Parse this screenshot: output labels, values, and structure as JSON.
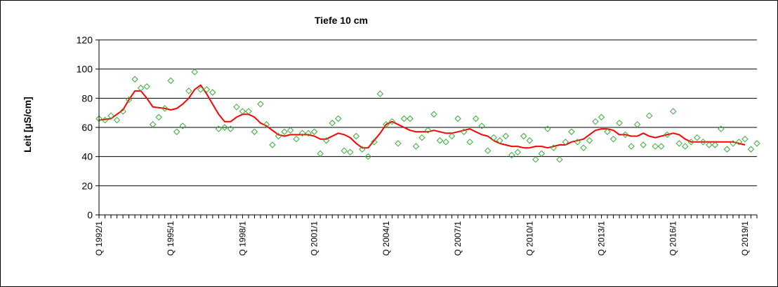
{
  "chart_data": {
    "type": "scatter",
    "title": "Tiefe  10 cm",
    "ylabel": "Leit  [µS/cm]",
    "xlabel": "",
    "ylim": [
      0,
      120
    ],
    "yticks": [
      0,
      20,
      40,
      60,
      80,
      100,
      120
    ],
    "x_tick_labels": [
      "Q 1992/1",
      "Q 1995/1",
      "Q 1998/1",
      "Q 2001/1",
      "Q 2004/1",
      "Q 2007/1",
      "Q 2010/1",
      "Q 2013/1",
      "Q 2016/1",
      "Q 2019/1"
    ],
    "x_start": "Q 1992/1",
    "n_quarters": 111,
    "grid": "horizontal",
    "colors": {
      "points": "#33aa33",
      "line": "#ff0000",
      "grid": "#000000"
    },
    "series": [
      {
        "kind": "markers",
        "points": [
          [
            "Q 1992/1",
            66
          ],
          [
            "Q 1992/2",
            65
          ],
          [
            "Q 1992/3",
            68
          ],
          [
            "Q 1992/4",
            65
          ],
          [
            "Q 1993/1",
            71
          ],
          [
            "Q 1993/2",
            79
          ],
          [
            "Q 1993/3",
            93
          ],
          [
            "Q 1993/4",
            87
          ],
          [
            "Q 1994/1",
            88
          ],
          [
            "Q 1994/2",
            62
          ],
          [
            "Q 1994/3",
            67
          ],
          [
            "Q 1994/4",
            73
          ],
          [
            "Q 1995/1",
            92
          ],
          [
            "Q 1995/2",
            57
          ],
          [
            "Q 1995/3",
            61
          ],
          [
            "Q 1995/4",
            85
          ],
          [
            "Q 1996/1",
            98
          ],
          [
            "Q 1996/2",
            86
          ],
          [
            "Q 1996/3",
            86
          ],
          [
            "Q 1996/4",
            84
          ],
          [
            "Q 1997/1",
            59
          ],
          [
            "Q 1997/2",
            60
          ],
          [
            "Q 1997/3",
            59
          ],
          [
            "Q 1997/4",
            74
          ],
          [
            "Q 1998/1",
            71
          ],
          [
            "Q 1998/2",
            71
          ],
          [
            "Q 1998/3",
            57
          ],
          [
            "Q 1998/4",
            76
          ],
          [
            "Q 1999/1",
            62
          ],
          [
            "Q 1999/2",
            48
          ],
          [
            "Q 1999/3",
            54
          ],
          [
            "Q 1999/4",
            57
          ],
          [
            "Q 2000/1",
            58
          ],
          [
            "Q 2000/2",
            52
          ],
          [
            "Q 2000/3",
            56
          ],
          [
            "Q 2000/4",
            56
          ],
          [
            "Q 2001/1",
            57
          ],
          [
            "Q 2001/2",
            42
          ],
          [
            "Q 2001/3",
            51
          ],
          [
            "Q 2001/4",
            63
          ],
          [
            "Q 2002/1",
            66
          ],
          [
            "Q 2002/2",
            44
          ],
          [
            "Q 2002/3",
            43
          ],
          [
            "Q 2002/4",
            54
          ],
          [
            "Q 2003/1",
            45
          ],
          [
            "Q 2003/2",
            40
          ],
          [
            "Q 2003/3",
            50
          ],
          [
            "Q 2003/4",
            83
          ],
          [
            "Q 2004/1",
            62
          ],
          [
            "Q 2004/2",
            64
          ],
          [
            "Q 2004/3",
            49
          ],
          [
            "Q 2004/4",
            66
          ],
          [
            "Q 2005/1",
            66
          ],
          [
            "Q 2005/2",
            47
          ],
          [
            "Q 2005/3",
            53
          ],
          [
            "Q 2005/4",
            58
          ],
          [
            "Q 2006/1",
            69
          ],
          [
            "Q 2006/2",
            51
          ],
          [
            "Q 2006/3",
            50
          ],
          [
            "Q 2006/4",
            54
          ],
          [
            "Q 2007/1",
            66
          ],
          [
            "Q 2007/2",
            57
          ],
          [
            "Q 2007/3",
            50
          ],
          [
            "Q 2007/4",
            66
          ],
          [
            "Q 2008/1",
            61
          ],
          [
            "Q 2008/2",
            44
          ],
          [
            "Q 2008/3",
            53
          ],
          [
            "Q 2008/4",
            51
          ],
          [
            "Q 2009/1",
            54
          ],
          [
            "Q 2009/2",
            41
          ],
          [
            "Q 2009/3",
            43
          ],
          [
            "Q 2009/4",
            54
          ],
          [
            "Q 2010/1",
            51
          ],
          [
            "Q 2010/2",
            38
          ],
          [
            "Q 2010/3",
            42
          ],
          [
            "Q 2010/4",
            59
          ],
          [
            "Q 2011/1",
            46
          ],
          [
            "Q 2011/2",
            38
          ],
          [
            "Q 2011/3",
            50
          ],
          [
            "Q 2011/4",
            57
          ],
          [
            "Q 2012/1",
            50
          ],
          [
            "Q 2012/2",
            46
          ],
          [
            "Q 2012/3",
            51
          ],
          [
            "Q 2012/4",
            64
          ],
          [
            "Q 2013/1",
            67
          ],
          [
            "Q 2013/2",
            57
          ],
          [
            "Q 2013/3",
            52
          ],
          [
            "Q 2013/4",
            63
          ],
          [
            "Q 2014/1",
            55
          ],
          [
            "Q 2014/2",
            47
          ],
          [
            "Q 2014/3",
            62
          ],
          [
            "Q 2014/4",
            48
          ],
          [
            "Q 2015/1",
            68
          ],
          [
            "Q 2015/2",
            47
          ],
          [
            "Q 2015/3",
            47
          ],
          [
            "Q 2015/4",
            55
          ],
          [
            "Q 2016/1",
            71
          ],
          [
            "Q 2016/2",
            49
          ],
          [
            "Q 2016/3",
            47
          ],
          [
            "Q 2016/4",
            50
          ],
          [
            "Q 2017/1",
            53
          ],
          [
            "Q 2017/2",
            50
          ],
          [
            "Q 2017/3",
            48
          ],
          [
            "Q 2017/4",
            48
          ],
          [
            "Q 2018/1",
            59
          ],
          [
            "Q 2018/2",
            45
          ],
          [
            "Q 2018/3",
            49
          ],
          [
            "Q 2018/4",
            50
          ],
          [
            "Q 2019/1",
            52
          ],
          [
            "Q 2019/2",
            45
          ],
          [
            "Q 2019/3",
            49
          ]
        ]
      },
      {
        "kind": "line",
        "points": [
          [
            "Q 1992/1",
            65
          ],
          [
            "Q 1992/3",
            66
          ],
          [
            "Q 1993/1",
            72
          ],
          [
            "Q 1993/2",
            79
          ],
          [
            "Q 1993/3",
            85
          ],
          [
            "Q 1993/4",
            85
          ],
          [
            "Q 1994/1",
            80
          ],
          [
            "Q 1994/2",
            74
          ],
          [
            "Q 1994/4",
            73
          ],
          [
            "Q 1995/1",
            72
          ],
          [
            "Q 1995/2",
            73
          ],
          [
            "Q 1995/3",
            76
          ],
          [
            "Q 1995/4",
            80
          ],
          [
            "Q 1996/1",
            86
          ],
          [
            "Q 1996/2",
            89
          ],
          [
            "Q 1996/3",
            83
          ],
          [
            "Q 1996/4",
            76
          ],
          [
            "Q 1997/1",
            69
          ],
          [
            "Q 1997/2",
            64
          ],
          [
            "Q 1997/3",
            64
          ],
          [
            "Q 1997/4",
            67
          ],
          [
            "Q 1998/1",
            69
          ],
          [
            "Q 1998/2",
            69
          ],
          [
            "Q 1998/3",
            67
          ],
          [
            "Q 1998/4",
            63
          ],
          [
            "Q 1999/1",
            61
          ],
          [
            "Q 1999/2",
            58
          ],
          [
            "Q 1999/3",
            55
          ],
          [
            "Q 1999/4",
            54
          ],
          [
            "Q 2000/1",
            55
          ],
          [
            "Q 2000/4",
            55
          ],
          [
            "Q 2001/1",
            54
          ],
          [
            "Q 2001/2",
            52
          ],
          [
            "Q 2001/3",
            52
          ],
          [
            "Q 2001/4",
            54
          ],
          [
            "Q 2002/1",
            56
          ],
          [
            "Q 2002/2",
            55
          ],
          [
            "Q 2002/3",
            53
          ],
          [
            "Q 2002/4",
            49
          ],
          [
            "Q 2003/1",
            46
          ],
          [
            "Q 2003/2",
            46
          ],
          [
            "Q 2003/3",
            51
          ],
          [
            "Q 2003/4",
            56
          ],
          [
            "Q 2004/1",
            62
          ],
          [
            "Q 2004/2",
            64
          ],
          [
            "Q 2004/3",
            62
          ],
          [
            "Q 2004/4",
            60
          ],
          [
            "Q 2005/1",
            58
          ],
          [
            "Q 2005/2",
            57
          ],
          [
            "Q 2005/4",
            57
          ],
          [
            "Q 2006/1",
            58
          ],
          [
            "Q 2006/2",
            57
          ],
          [
            "Q 2006/3",
            56
          ],
          [
            "Q 2006/4",
            56
          ],
          [
            "Q 2007/1",
            57
          ],
          [
            "Q 2007/2",
            58
          ],
          [
            "Q 2007/3",
            59
          ],
          [
            "Q 2007/4",
            57
          ],
          [
            "Q 2008/1",
            55
          ],
          [
            "Q 2008/2",
            54
          ],
          [
            "Q 2008/3",
            51
          ],
          [
            "Q 2008/4",
            49
          ],
          [
            "Q 2009/1",
            48
          ],
          [
            "Q 2009/2",
            47
          ],
          [
            "Q 2009/3",
            47
          ],
          [
            "Q 2009/4",
            46
          ],
          [
            "Q 2010/1",
            46
          ],
          [
            "Q 2010/2",
            47
          ],
          [
            "Q 2010/3",
            47
          ],
          [
            "Q 2010/4",
            46
          ],
          [
            "Q 2011/1",
            47
          ],
          [
            "Q 2011/2",
            48
          ],
          [
            "Q 2011/3",
            48
          ],
          [
            "Q 2011/4",
            50
          ],
          [
            "Q 2012/1",
            51
          ],
          [
            "Q 2012/2",
            52
          ],
          [
            "Q 2012/3",
            55
          ],
          [
            "Q 2012/4",
            58
          ],
          [
            "Q 2013/1",
            59
          ],
          [
            "Q 2013/2",
            59
          ],
          [
            "Q 2013/3",
            58
          ],
          [
            "Q 2013/4",
            55
          ],
          [
            "Q 2014/1",
            55
          ],
          [
            "Q 2014/2",
            54
          ],
          [
            "Q 2014/3",
            54
          ],
          [
            "Q 2014/4",
            56
          ],
          [
            "Q 2015/1",
            54
          ],
          [
            "Q 2015/2",
            53
          ],
          [
            "Q 2015/3",
            54
          ],
          [
            "Q 2015/4",
            55
          ],
          [
            "Q 2016/1",
            56
          ],
          [
            "Q 2016/2",
            55
          ],
          [
            "Q 2016/3",
            52
          ],
          [
            "Q 2016/4",
            50
          ],
          [
            "Q 2017/1",
            50
          ],
          [
            "Q 2017/2",
            50
          ],
          [
            "Q 2017/3",
            50
          ],
          [
            "Q 2017/4",
            50
          ],
          [
            "Q 2018/1",
            50
          ],
          [
            "Q 2018/2",
            50
          ],
          [
            "Q 2018/3",
            50
          ],
          [
            "Q 2018/4",
            49
          ],
          [
            "Q 2019/1",
            48
          ]
        ]
      }
    ]
  }
}
